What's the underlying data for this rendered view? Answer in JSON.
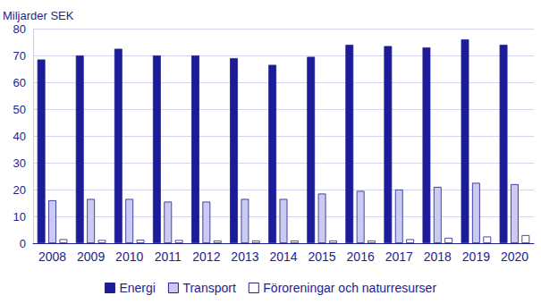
{
  "chart_data": {
    "type": "bar",
    "ylabel": "Miljarder SEK",
    "categories": [
      "2008",
      "2009",
      "2010",
      "2011",
      "2012",
      "2013",
      "2014",
      "2015",
      "2016",
      "2017",
      "2018",
      "2019",
      "2020"
    ],
    "series": [
      {
        "name": "Energi",
        "color": "#1c1c9a",
        "values": [
          68.5,
          70,
          72.5,
          70,
          70,
          69,
          66.5,
          69.5,
          74,
          73.5,
          73,
          76,
          74
        ]
      },
      {
        "name": "Transport",
        "color": "#cacaf2",
        "values": [
          16,
          16.5,
          16.5,
          15.5,
          15.5,
          16.5,
          16.5,
          18.5,
          19.5,
          20,
          21,
          22.5,
          22
        ]
      },
      {
        "name": "Föroreningar och naturresurser",
        "color": "#ffffff",
        "values": [
          1.5,
          1.2,
          1.3,
          1.2,
          1.0,
          1.0,
          1.0,
          1.0,
          1.0,
          1.5,
          2,
          2.5,
          3
        ]
      }
    ],
    "ylim": [
      0,
      80
    ],
    "yticks": [
      0,
      10,
      20,
      30,
      40,
      50,
      60,
      70,
      80
    ],
    "grid": true,
    "legend": "bottom"
  }
}
